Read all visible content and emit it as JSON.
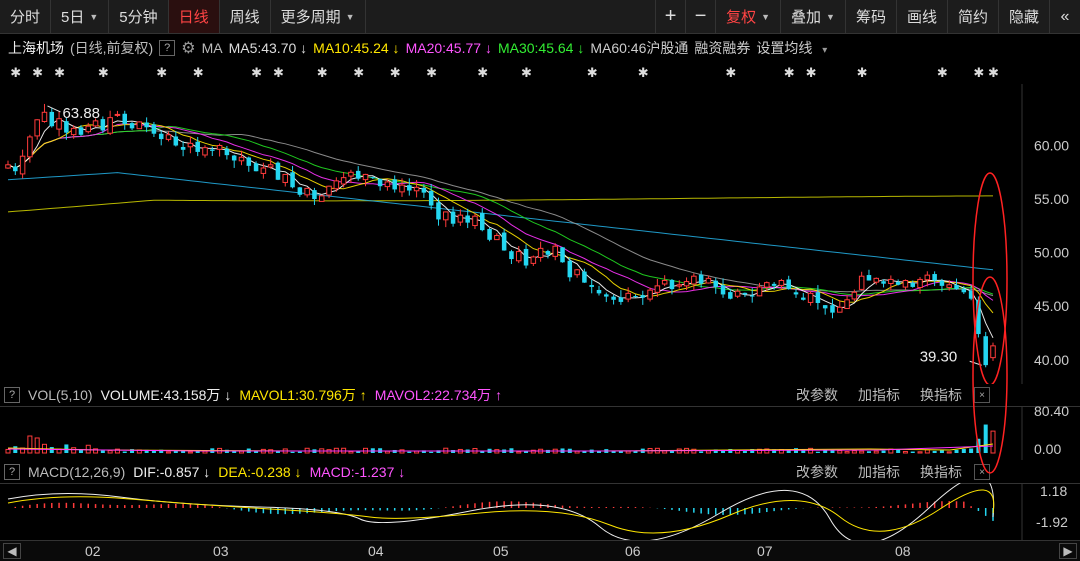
{
  "toolbar": {
    "left": [
      "分时",
      "5日",
      "5分钟",
      "日线",
      "周线",
      "更多周期"
    ],
    "left_caret": [
      false,
      true,
      false,
      false,
      false,
      true
    ],
    "active_index": 3,
    "plus": "+",
    "minus": "−",
    "right": [
      "复权",
      "叠加",
      "筹码",
      "画线",
      "简约",
      "隐藏"
    ],
    "right_caret": [
      true,
      true,
      false,
      false,
      false,
      false
    ],
    "right_red": [
      true,
      false,
      false,
      false,
      false,
      false
    ],
    "collapse_icon": "«"
  },
  "ma_bar": {
    "stock_name": "上海机场",
    "period_label": "(日线,前复权)",
    "help": "?",
    "gear_icon": "gear-icon",
    "ma_label": "MA",
    "ma5": "MA5:43.70 ↓",
    "ma10": "MA10:45.24 ↓",
    "ma20": "MA20:45.77 ↓",
    "ma30": "MA30:45.64 ↓",
    "ma60": "MA60:46",
    "hgt": "沪股通",
    "margin": "融资融券",
    "set_ma": "设置均线",
    "set_ma_caret": "▾"
  },
  "colors": {
    "up": "#ff3b3b",
    "down": "#24d6f0",
    "ma5": "#ffffff",
    "ma10": "#ffe600",
    "ma20": "#ff33ff",
    "ma30": "#22dd22",
    "ma60": "#999999",
    "ma120": "#22aadd",
    "ma250": "#cccc00",
    "ma5_label": "#dddddd",
    "ma10_label": "#ffe600",
    "ma20_label": "#ff55ff",
    "ma30_label": "#33ee33",
    "annotation": "#ff2222"
  },
  "star_glyph": "✱",
  "price_axis": [
    "60.00",
    "55.00",
    "50.00",
    "45.00",
    "40.00"
  ],
  "annotations": {
    "high": "63.88",
    "low": "39.30"
  },
  "vol_bar": {
    "help": "?",
    "name": "VOL(5,10)",
    "volume": "VOLUME:43.158万 ↓",
    "mavol1": "MAVOL1:30.796万 ↑",
    "mavol2": "MAVOL2:22.734万 ↑",
    "actions": [
      "改参数",
      "加指标",
      "换指标"
    ],
    "close": "×"
  },
  "vol_axis": [
    "80.40",
    "0.00"
  ],
  "macd_bar": {
    "help": "?",
    "name": "MACD(12,26,9)",
    "dif": "DIF:-0.857 ↓",
    "dea": "DEA:-0.238 ↓",
    "macd": "MACD:-1.237 ↓",
    "actions": [
      "改参数",
      "加指标",
      "换指标"
    ],
    "close": "×"
  },
  "macd_axis": [
    "1.18",
    "-1.92"
  ],
  "months": [
    "02",
    "03",
    "04",
    "05",
    "06",
    "07",
    "08"
  ],
  "scroll": {
    "left": "◀",
    "right": "▶"
  },
  "chart_data": {
    "type": "candlestick",
    "title": "上海机场",
    "subtitle": "(日线,前复权)",
    "months": [
      "02",
      "03",
      "04",
      "05",
      "06",
      "07",
      "08"
    ],
    "y_ticks": [
      60,
      55,
      50,
      45,
      40
    ],
    "high_label": 63.88,
    "low_label": 39.3,
    "close_series": [
      58.2,
      57.6,
      59.0,
      60.8,
      62.4,
      63.1,
      61.8,
      62.5,
      61.2,
      61.6,
      61.0,
      61.8,
      62.3,
      61.4,
      62.6,
      62.9,
      62.0,
      61.6,
      62.2,
      61.7,
      61.1,
      60.6,
      61.0,
      60.0,
      59.6,
      60.2,
      59.4,
      59.8,
      59.5,
      60.0,
      59.1,
      58.6,
      58.9,
      58.1,
      57.6,
      57.9,
      58.2,
      56.8,
      57.3,
      56.1,
      55.4,
      56.0,
      55.0,
      55.3,
      56.2,
      56.7,
      57.0,
      57.5,
      56.9,
      57.3,
      57.0,
      56.2,
      56.6,
      55.9,
      56.3,
      55.8,
      56.1,
      55.6,
      54.4,
      53.1,
      53.8,
      52.7,
      53.5,
      52.8,
      53.4,
      52.1,
      51.2,
      51.6,
      50.2,
      49.4,
      50.1,
      48.8,
      49.6,
      50.4,
      49.8,
      50.6,
      49.1,
      47.7,
      48.4,
      47.2,
      46.8,
      46.2,
      45.9,
      45.6,
      45.4,
      46.2,
      45.9,
      45.8,
      46.5,
      46.9,
      47.4,
      46.6,
      47.0,
      47.3,
      47.8,
      47.1,
      47.6,
      46.8,
      46.1,
      45.7,
      46.4,
      46.1,
      45.9,
      46.8,
      47.2,
      46.9,
      47.4,
      46.6,
      46.1,
      45.6,
      46.2,
      45.3,
      44.8,
      44.4,
      44.9,
      45.6,
      46.3,
      47.8,
      47.4,
      47.6,
      47.1,
      47.5,
      47.0,
      47.4,
      46.8,
      47.5,
      47.9,
      47.4,
      46.9,
      47.0,
      46.6,
      46.3,
      45.7,
      42.4,
      39.3,
      40.8
    ],
    "ma_names": [
      "MA5",
      "MA10",
      "MA20",
      "MA30"
    ],
    "ma_values": [
      43.7,
      45.24,
      45.77,
      45.64
    ],
    "vol_ticks": [
      80.4,
      0.0
    ],
    "volume": 43.158,
    "mavol1": 30.796,
    "mavol2": 22.734,
    "macd_ticks": [
      1.18,
      -1.92
    ],
    "dif": -0.857,
    "dea": -0.238,
    "macd": -1.237
  }
}
